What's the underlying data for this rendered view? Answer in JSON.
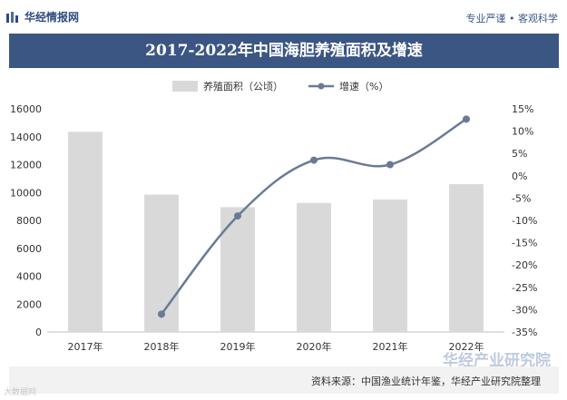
{
  "header": {
    "brand": "华经情报网",
    "slogan": "专业严谨 • 客观科学"
  },
  "colors": {
    "banner": "#3c5683",
    "bar": "#d9d9d9",
    "line": "#6a7a95",
    "accent": "#2f4b7c"
  },
  "chart_data": {
    "type": "bar",
    "title": "2017-2022年中国海胆养殖面积及增速",
    "categories": [
      "2017年",
      "2018年",
      "2019年",
      "2020年",
      "2021年",
      "2022年"
    ],
    "series": [
      {
        "name": "养殖面积（公顷）",
        "type": "bar",
        "axis": "left",
        "values": [
          14350,
          9850,
          8950,
          9250,
          9500,
          10600
        ]
      },
      {
        "name": "增速（%）",
        "type": "line",
        "axis": "right",
        "values": [
          null,
          -31.0,
          -9.0,
          3.5,
          2.5,
          12.7
        ]
      }
    ],
    "y_left": {
      "min": 0,
      "max": 16000,
      "ticks": [
        "0",
        "2000",
        "4000",
        "6000",
        "8000",
        "10000",
        "12000",
        "14000",
        "16000"
      ]
    },
    "y_right": {
      "min": -35,
      "max": 15,
      "ticks": [
        "-35%",
        "-30%",
        "-25%",
        "-20%",
        "-15%",
        "-10%",
        "-5%",
        "0%",
        "5%",
        "10%",
        "15%"
      ]
    },
    "legend_position": "top-center",
    "grid": false
  },
  "footer": {
    "source": "资料来源：中国渔业统计年鉴，华经产业研究院整理"
  },
  "watermarks": {
    "brand_large": "华经产业研究院",
    "corner": "大数据网"
  }
}
